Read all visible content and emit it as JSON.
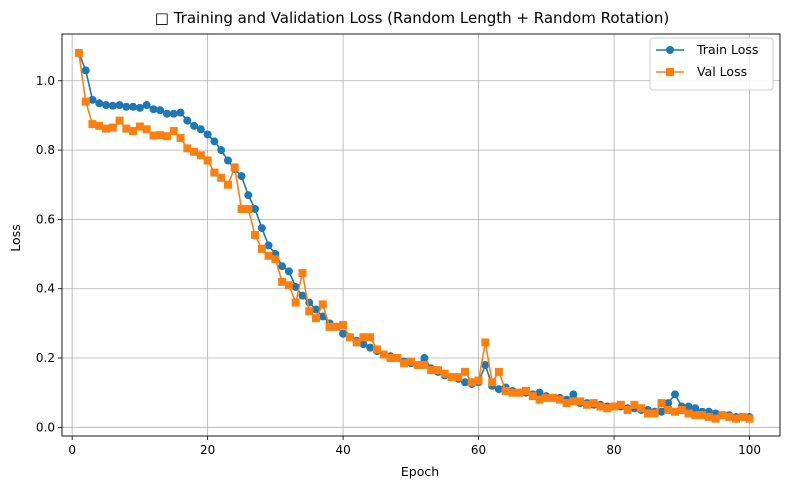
{
  "chart_data": {
    "type": "line",
    "title": "□ Training and Validation Loss (Random Length + Random Rotation)",
    "xlabel": "Epoch",
    "ylabel": "Loss",
    "xlim": [
      -1.5,
      104.5
    ],
    "ylim": [
      -0.025,
      1.135
    ],
    "xticks": [
      0,
      20,
      40,
      60,
      80,
      100
    ],
    "yticks": [
      0.0,
      0.2,
      0.4,
      0.6,
      0.8,
      1.0
    ],
    "xtick_labels": [
      "0",
      "20",
      "40",
      "60",
      "80",
      "100"
    ],
    "ytick_labels": [
      "0.0",
      "0.2",
      "0.4",
      "0.6",
      "0.8",
      "1.0"
    ],
    "grid": true,
    "legend_position": "top-right",
    "x": [
      1,
      2,
      3,
      4,
      5,
      6,
      7,
      8,
      9,
      10,
      11,
      12,
      13,
      14,
      15,
      16,
      17,
      18,
      19,
      20,
      21,
      22,
      23,
      24,
      25,
      26,
      27,
      28,
      29,
      30,
      31,
      32,
      33,
      34,
      35,
      36,
      37,
      38,
      39,
      40,
      41,
      42,
      43,
      44,
      45,
      46,
      47,
      48,
      49,
      50,
      51,
      52,
      53,
      54,
      55,
      56,
      57,
      58,
      59,
      60,
      61,
      62,
      63,
      64,
      65,
      66,
      67,
      68,
      69,
      70,
      71,
      72,
      73,
      74,
      75,
      76,
      77,
      78,
      79,
      80,
      81,
      82,
      83,
      84,
      85,
      86,
      87,
      88,
      89,
      90,
      91,
      92,
      93,
      94,
      95,
      96,
      97,
      98,
      99,
      100
    ],
    "series": [
      {
        "name": "Train Loss",
        "color": "#1f77b4",
        "marker": "circle",
        "values": [
          1.08,
          1.03,
          0.945,
          0.935,
          0.93,
          0.928,
          0.93,
          0.925,
          0.925,
          0.922,
          0.93,
          0.918,
          0.915,
          0.905,
          0.905,
          0.908,
          0.885,
          0.87,
          0.86,
          0.845,
          0.825,
          0.8,
          0.77,
          0.745,
          0.725,
          0.67,
          0.63,
          0.575,
          0.525,
          0.5,
          0.465,
          0.45,
          0.405,
          0.38,
          0.36,
          0.34,
          0.32,
          0.3,
          0.29,
          0.27,
          0.26,
          0.25,
          0.24,
          0.23,
          0.22,
          0.21,
          0.205,
          0.2,
          0.19,
          0.185,
          0.18,
          0.2,
          0.17,
          0.16,
          0.15,
          0.145,
          0.14,
          0.13,
          0.125,
          0.13,
          0.18,
          0.12,
          0.11,
          0.115,
          0.105,
          0.1,
          0.1,
          0.095,
          0.1,
          0.09,
          0.085,
          0.085,
          0.08,
          0.095,
          0.07,
          0.07,
          0.065,
          0.065,
          0.06,
          0.06,
          0.06,
          0.055,
          0.055,
          0.05,
          0.05,
          0.045,
          0.045,
          0.07,
          0.095,
          0.06,
          0.06,
          0.055,
          0.045,
          0.045,
          0.04,
          0.035,
          0.035,
          0.03,
          0.03,
          0.03
        ]
      },
      {
        "name": "Val Loss",
        "color": "#ff7f0e",
        "marker": "square",
        "values": [
          1.08,
          0.94,
          0.875,
          0.87,
          0.862,
          0.865,
          0.885,
          0.862,
          0.855,
          0.868,
          0.86,
          0.842,
          0.843,
          0.84,
          0.855,
          0.835,
          0.805,
          0.795,
          0.785,
          0.77,
          0.735,
          0.72,
          0.7,
          0.75,
          0.63,
          0.63,
          0.555,
          0.515,
          0.495,
          0.485,
          0.42,
          0.41,
          0.36,
          0.445,
          0.335,
          0.315,
          0.355,
          0.29,
          0.29,
          0.295,
          0.26,
          0.245,
          0.26,
          0.26,
          0.225,
          0.21,
          0.2,
          0.2,
          0.185,
          0.19,
          0.18,
          0.18,
          0.165,
          0.165,
          0.155,
          0.145,
          0.145,
          0.16,
          0.13,
          0.135,
          0.245,
          0.13,
          0.16,
          0.105,
          0.1,
          0.1,
          0.105,
          0.09,
          0.08,
          0.085,
          0.085,
          0.08,
          0.07,
          0.075,
          0.075,
          0.065,
          0.07,
          0.06,
          0.055,
          0.06,
          0.065,
          0.05,
          0.065,
          0.055,
          0.04,
          0.04,
          0.07,
          0.05,
          0.045,
          0.05,
          0.04,
          0.035,
          0.035,
          0.03,
          0.025,
          0.035,
          0.03,
          0.025,
          0.03,
          0.025
        ]
      }
    ]
  }
}
